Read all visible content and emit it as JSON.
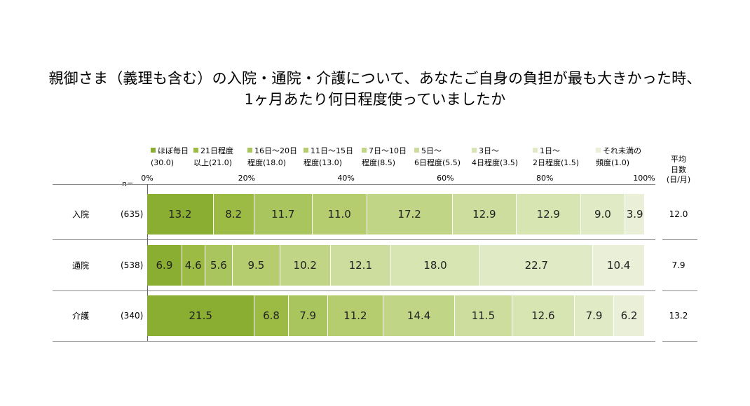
{
  "title": {
    "line1": "親御さま（義理も含む）の入院・通院・介護について、あなたご自身の負担が最も大きかった時、",
    "line2": "1ヶ月あたり何日程度使っていましたか"
  },
  "n_label": "n=",
  "avg_header": [
    "平均",
    "日数",
    "(日/月)"
  ],
  "colors": [
    "#8aae32",
    "#9bbb45",
    "#a9c55d",
    "#b5cd6f",
    "#c1d586",
    "#cddd9d",
    "#d7e5b2",
    "#e0ebc5",
    "#e9f0d7"
  ],
  "legend": [
    {
      "l1": "ほぼ毎日",
      "l2": "(30.0)"
    },
    {
      "l1": "21日程度",
      "l2": "以上(21.0)"
    },
    {
      "l1": "16日～20日",
      "l2": "程度(18.0)"
    },
    {
      "l1": "11日～15日",
      "l2": "程度(13.0)"
    },
    {
      "l1": "7日～10日",
      "l2": "程度(8.5)"
    },
    {
      "l1": "5日～",
      "l2": "6日程度(5.5)"
    },
    {
      "l1": "3日～",
      "l2": "4日程度(3.5)"
    },
    {
      "l1": "1日～",
      "l2": "2日程度(1.5)"
    },
    {
      "l1": "それ未満の",
      "l2": "頻度(1.0)"
    }
  ],
  "chart_data": {
    "type": "bar",
    "orientation": "horizontal-stacked-100",
    "x_ticks": [
      "0%",
      "20%",
      "40%",
      "60%",
      "80%",
      "100%"
    ],
    "xlim": [
      0,
      100
    ],
    "categories": [
      "入院",
      "通院",
      "介護"
    ],
    "n": [
      "(635)",
      "(538)",
      "(340)"
    ],
    "average_days": [
      "12.0",
      "7.9",
      "13.2"
    ],
    "series": [
      {
        "name": "ほぼ毎日(30.0)",
        "values": [
          13.2,
          6.9,
          21.5
        ]
      },
      {
        "name": "21日程度以上(21.0)",
        "values": [
          8.2,
          4.6,
          6.8
        ]
      },
      {
        "name": "16日～20日程度(18.0)",
        "values": [
          11.7,
          5.6,
          7.9
        ]
      },
      {
        "name": "11日～15日程度(13.0)",
        "values": [
          11.0,
          9.5,
          11.2
        ]
      },
      {
        "name": "7日～10日程度(8.5)",
        "values": [
          17.2,
          10.2,
          14.4
        ]
      },
      {
        "name": "5日～6日程度(5.5)",
        "values": [
          12.9,
          12.1,
          11.5
        ]
      },
      {
        "name": "3日～4日程度(3.5)",
        "values": [
          12.9,
          18.0,
          12.6
        ]
      },
      {
        "name": "1日～2日程度(1.5)",
        "values": [
          9.0,
          22.7,
          7.9
        ]
      },
      {
        "name": "それ未満の頻度(1.0)",
        "values": [
          3.9,
          10.4,
          6.2
        ]
      }
    ]
  }
}
